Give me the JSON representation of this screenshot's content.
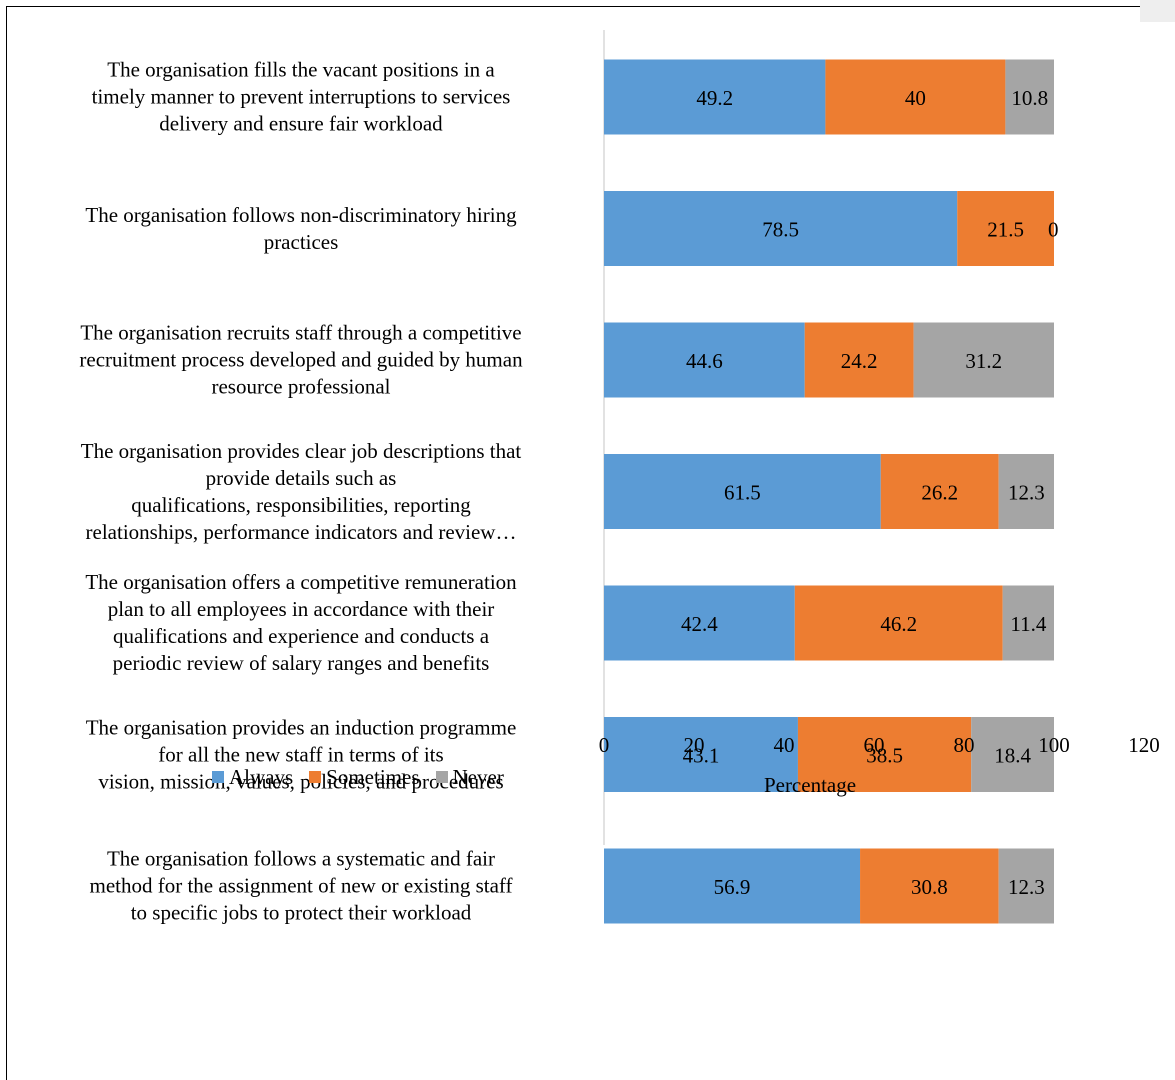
{
  "chart_data": {
    "type": "bar",
    "orientation": "horizontal",
    "stacked": true,
    "categories": [
      "The organisation fills the vacant positions in a timely manner to prevent interruptions to services delivery and ensure fair workload",
      "The organisation follows non-discriminatory hiring practices",
      "The organisation recruits staff through a competitive recruitment process developed and guided by human resource professional",
      "The organisation provides clear job descriptions that provide details such as qualifications, responsibilities, reporting relationships, performance indicators and review…",
      "The organisation offers a competitive remuneration plan to all employees in accordance with their qualifications and experience and conducts a periodic review of salary ranges and benefits",
      "The organisation provides an induction programme for all the new staff in terms of its vision, mission, values, policies, and procedures",
      "The organisation follows a systematic and fair method for the assignment of new or existing staff to specific jobs to protect their workload"
    ],
    "category_lines": [
      [
        "The organisation fills the vacant positions in a",
        "timely manner to prevent interruptions to services",
        "delivery and ensure fair workload"
      ],
      [
        "The organisation follows non-discriminatory hiring",
        "practices"
      ],
      [
        "The organisation recruits staff through a competitive",
        "recruitment process developed and guided by human",
        "resource professional"
      ],
      [
        "The organisation provides clear job descriptions that",
        "provide details such as",
        "qualifications, responsibilities, reporting",
        "relationships, performance indicators and review…"
      ],
      [
        "The organisation offers a competitive remuneration",
        "plan to all employees in accordance with their",
        "qualifications and experience and conducts a",
        "periodic review of salary ranges and benefits"
      ],
      [
        "The organisation provides an induction programme",
        "for all the new staff in terms of its",
        "vision, mission, values, policies, and procedures"
      ],
      [
        "The organisation follows a systematic and fair",
        "method for the assignment of new or existing staff",
        "to specific jobs to protect their workload"
      ]
    ],
    "series": [
      {
        "name": "Always",
        "color": "#5B9BD5",
        "values": [
          49.2,
          78.5,
          44.6,
          61.5,
          42.4,
          43.1,
          56.9
        ]
      },
      {
        "name": "Sometimes",
        "color": "#ED7D31",
        "values": [
          40,
          21.5,
          24.2,
          26.2,
          46.2,
          38.5,
          30.8
        ]
      },
      {
        "name": "Never",
        "color": "#A5A5A5",
        "values": [
          10.8,
          0,
          31.2,
          12.3,
          11.4,
          18.4,
          12.3
        ]
      }
    ],
    "data_labels": [
      [
        "49.2",
        "40",
        "10.8"
      ],
      [
        "78.5",
        "21.5",
        "0"
      ],
      [
        "44.6",
        "24.2",
        "31.2"
      ],
      [
        "61.5",
        "26.2",
        "12.3"
      ],
      [
        "42.4",
        "46.2",
        "11.4"
      ],
      [
        "43.1",
        "38.5",
        "18.4"
      ],
      [
        "56.9",
        "30.8",
        "12.3"
      ]
    ],
    "xlabel": "Percentage",
    "xlim": [
      0,
      120
    ],
    "xticks": [
      "0",
      "20",
      "40",
      "60",
      "80",
      "100",
      "120"
    ],
    "grid": false,
    "legend_position": "bottom-left"
  }
}
